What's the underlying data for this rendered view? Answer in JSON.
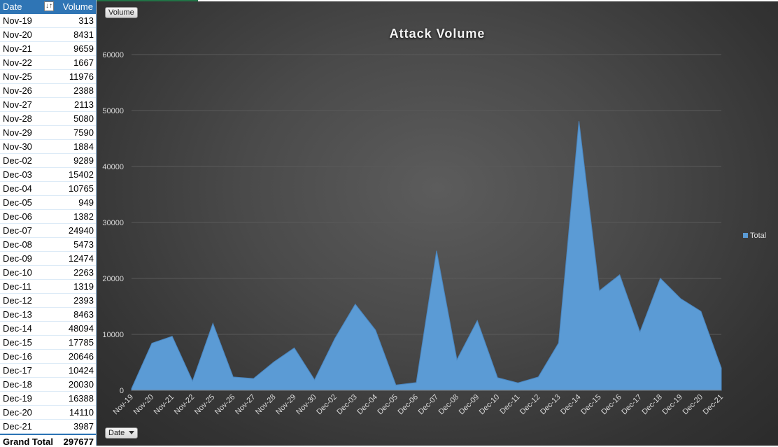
{
  "pivot": {
    "header": {
      "col1": "Date",
      "col2": "Volume",
      "filter_icon": "sort-filter-icon"
    },
    "rows": [
      {
        "date": "Nov-19",
        "volume": "313"
      },
      {
        "date": "Nov-20",
        "volume": "8431"
      },
      {
        "date": "Nov-21",
        "volume": "9659"
      },
      {
        "date": "Nov-22",
        "volume": "1667"
      },
      {
        "date": "Nov-25",
        "volume": "11976"
      },
      {
        "date": "Nov-26",
        "volume": "2388"
      },
      {
        "date": "Nov-27",
        "volume": "2113"
      },
      {
        "date": "Nov-28",
        "volume": "5080"
      },
      {
        "date": "Nov-29",
        "volume": "7590"
      },
      {
        "date": "Nov-30",
        "volume": "1884"
      },
      {
        "date": "Dec-02",
        "volume": "9289"
      },
      {
        "date": "Dec-03",
        "volume": "15402"
      },
      {
        "date": "Dec-04",
        "volume": "10765"
      },
      {
        "date": "Dec-05",
        "volume": "949"
      },
      {
        "date": "Dec-06",
        "volume": "1382"
      },
      {
        "date": "Dec-07",
        "volume": "24940"
      },
      {
        "date": "Dec-08",
        "volume": "5473"
      },
      {
        "date": "Dec-09",
        "volume": "12474"
      },
      {
        "date": "Dec-10",
        "volume": "2263"
      },
      {
        "date": "Dec-11",
        "volume": "1319"
      },
      {
        "date": "Dec-12",
        "volume": "2393"
      },
      {
        "date": "Dec-13",
        "volume": "8463"
      },
      {
        "date": "Dec-14",
        "volume": "48094"
      },
      {
        "date": "Dec-15",
        "volume": "17785"
      },
      {
        "date": "Dec-16",
        "volume": "20646"
      },
      {
        "date": "Dec-17",
        "volume": "10424"
      },
      {
        "date": "Dec-18",
        "volume": "20030"
      },
      {
        "date": "Dec-19",
        "volume": "16388"
      },
      {
        "date": "Dec-20",
        "volume": "14110"
      },
      {
        "date": "Dec-21",
        "volume": "3987"
      }
    ],
    "grand_total": {
      "label": "Grand Total",
      "value": "297677"
    }
  },
  "chart_buttons": {
    "values_field": "Volume",
    "axis_field": "Date"
  },
  "colors": {
    "area": "#5b9bd5",
    "background": "#404040",
    "text": "#d9d9d9",
    "gridline": "#5a5a5a"
  },
  "chart_data": {
    "type": "area",
    "title": "Attack Volume",
    "categories": [
      "Nov-19",
      "Nov-20",
      "Nov-21",
      "Nov-22",
      "Nov-25",
      "Nov-26",
      "Nov-27",
      "Nov-28",
      "Nov-29",
      "Nov-30",
      "Dec-02",
      "Dec-03",
      "Dec-04",
      "Dec-05",
      "Dec-06",
      "Dec-07",
      "Dec-08",
      "Dec-09",
      "Dec-10",
      "Dec-11",
      "Dec-12",
      "Dec-13",
      "Dec-14",
      "Dec-15",
      "Dec-16",
      "Dec-17",
      "Dec-18",
      "Dec-19",
      "Dec-20",
      "Dec-21"
    ],
    "series": [
      {
        "name": "Total",
        "values": [
          313,
          8431,
          9659,
          1667,
          11976,
          2388,
          2113,
          5080,
          7590,
          1884,
          9289,
          15402,
          10765,
          949,
          1382,
          24940,
          5473,
          12474,
          2263,
          1319,
          2393,
          8463,
          48094,
          17785,
          20646,
          10424,
          20030,
          16388,
          14110,
          3987
        ]
      }
    ],
    "ylim": [
      0,
      60000
    ],
    "yticks": [
      "0",
      "10000",
      "20000",
      "30000",
      "40000",
      "50000",
      "60000"
    ],
    "grid": true,
    "legend": "right"
  }
}
